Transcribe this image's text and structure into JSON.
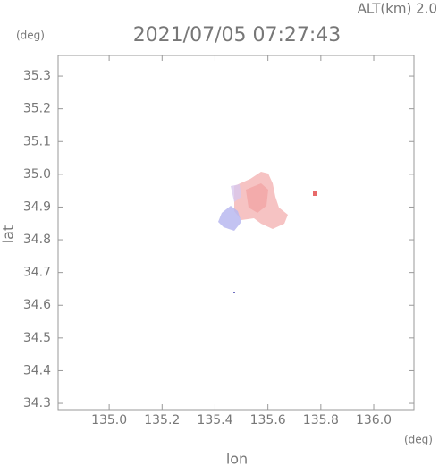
{
  "chart_data": {
    "type": "map",
    "title": "2021/07/05 07:27:43",
    "subtitle": "ALT(km) 2.0",
    "x_label": "lon",
    "y_label": "lat",
    "x_unit": "(deg)",
    "y_unit": "(deg)",
    "xlim": [
      134.807,
      136.152
    ],
    "ylim": [
      34.281,
      35.363
    ],
    "xticks": [
      {
        "value": 135,
        "label": "135.0"
      },
      135.2,
      135.4,
      135.6,
      135.8,
      {
        "value": 136,
        "label": "136.0"
      }
    ],
    "yticks": [
      35.3,
      35.2,
      35.1,
      {
        "value": 35,
        "label": "35.0"
      },
      34.9,
      34.8,
      34.7,
      34.6,
      34.5,
      34.4,
      34.3
    ]
  }
}
